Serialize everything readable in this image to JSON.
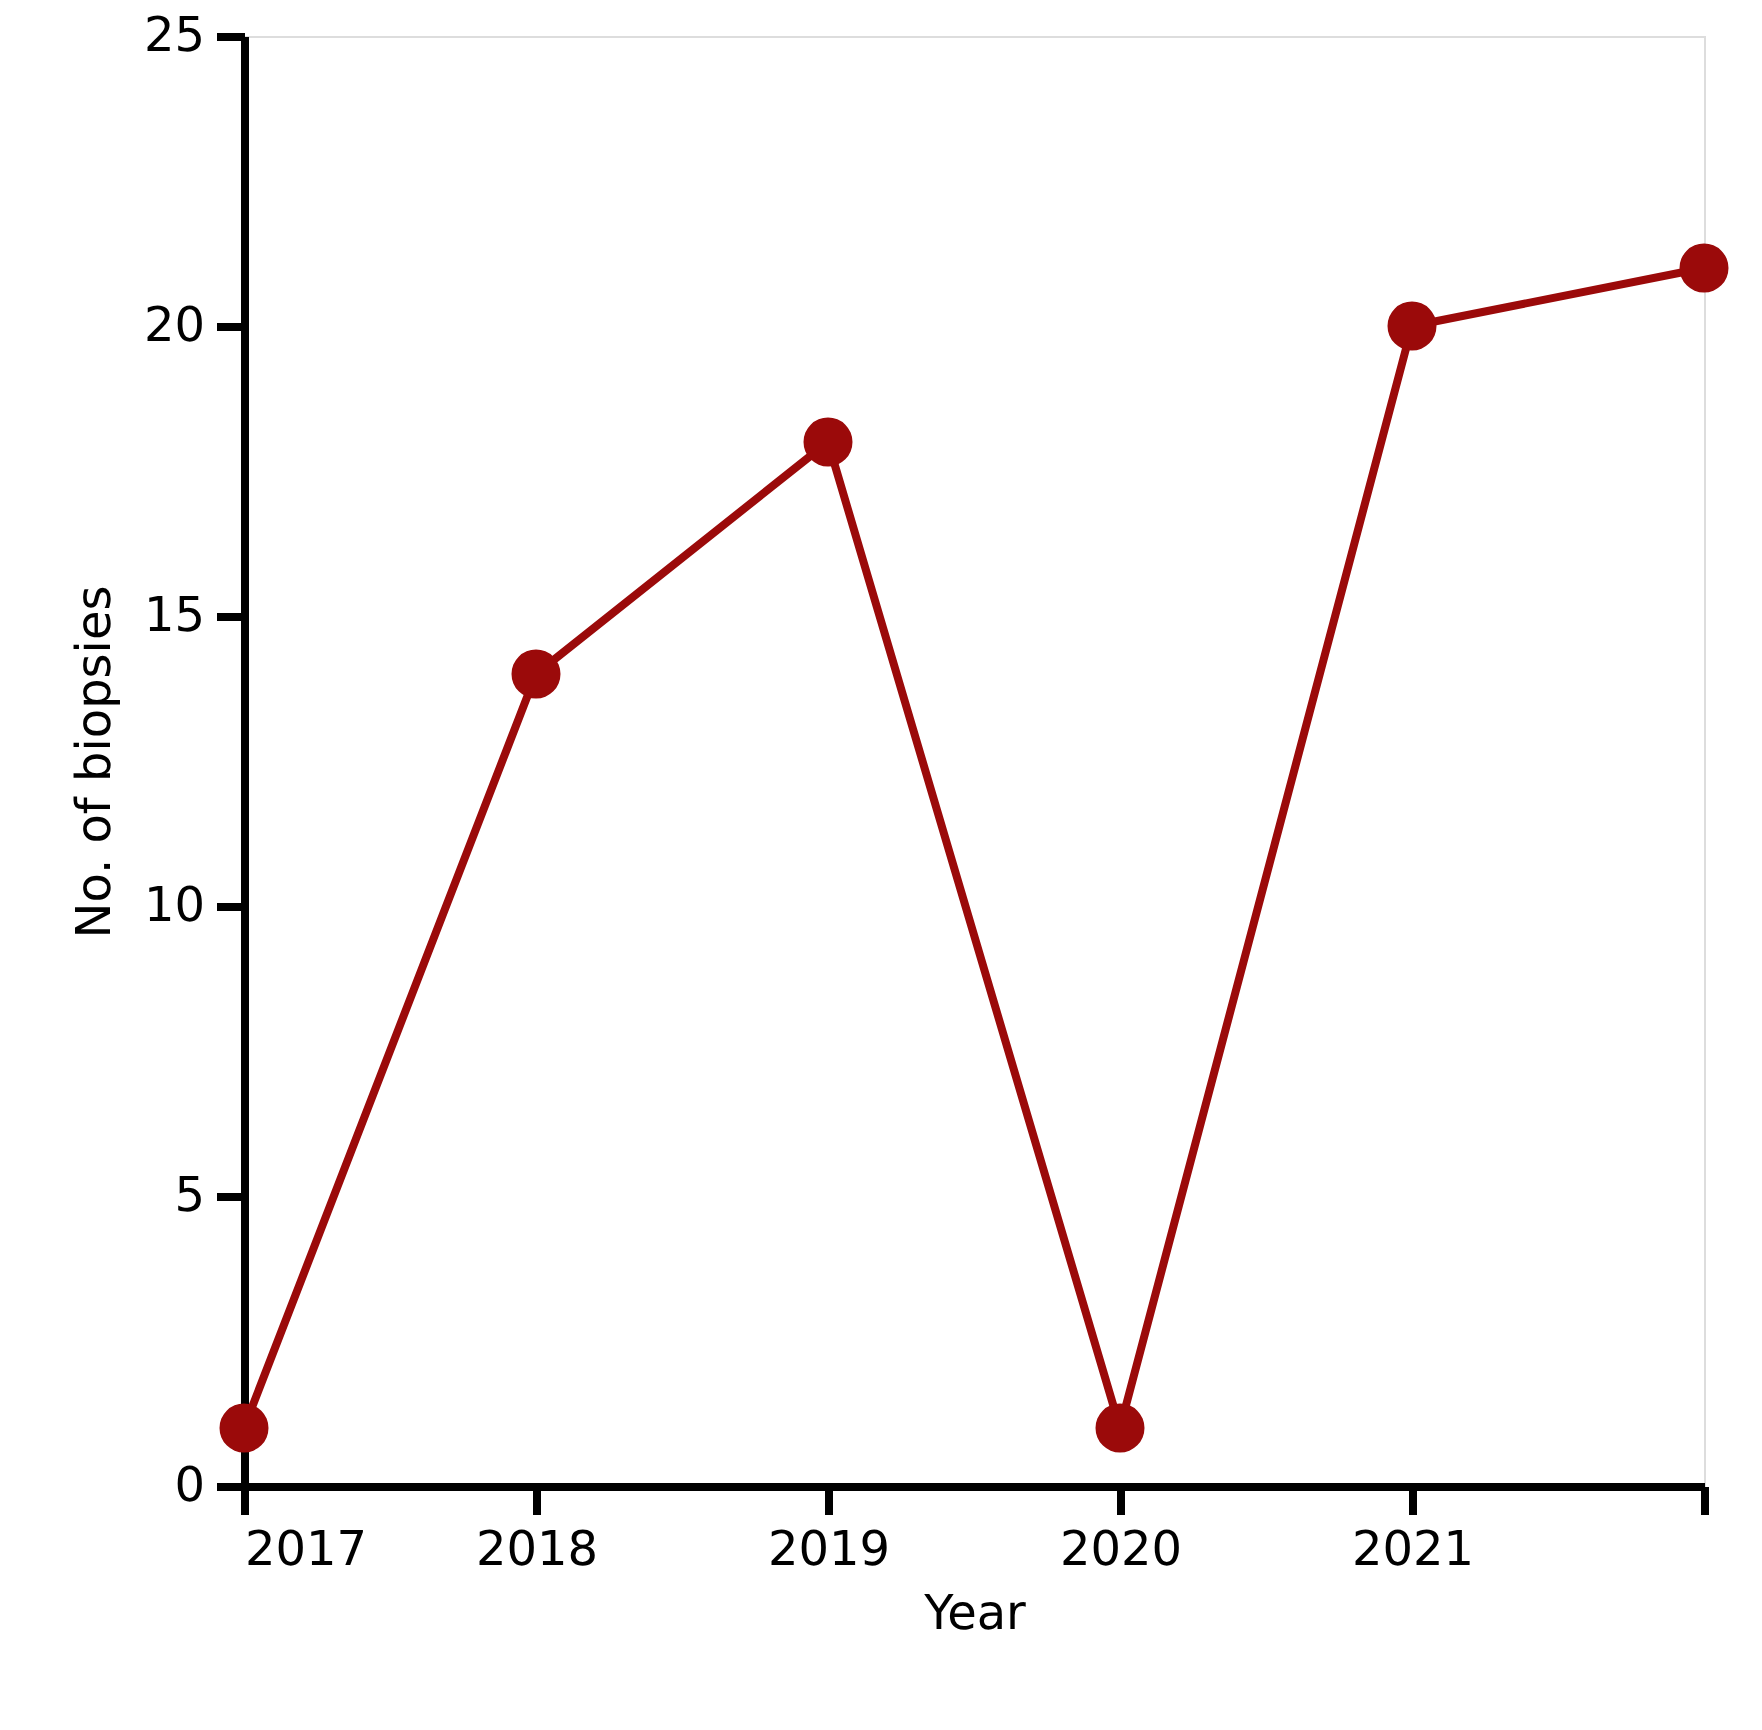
{
  "chart_data": {
    "type": "line",
    "xlabel": "Year",
    "ylabel": "No. of biopsies",
    "categories": [
      "2017",
      "2018",
      "2019",
      "2020",
      "2021",
      null
    ],
    "series": [
      {
        "color": "#9b0a0a",
        "values": [
          1,
          14,
          18,
          1,
          20,
          21
        ]
      }
    ],
    "ylim": [
      0,
      25
    ],
    "yticks": [
      0,
      5,
      10,
      15,
      20,
      25
    ],
    "grid": false,
    "marker": "circle",
    "line_style": "solid"
  }
}
